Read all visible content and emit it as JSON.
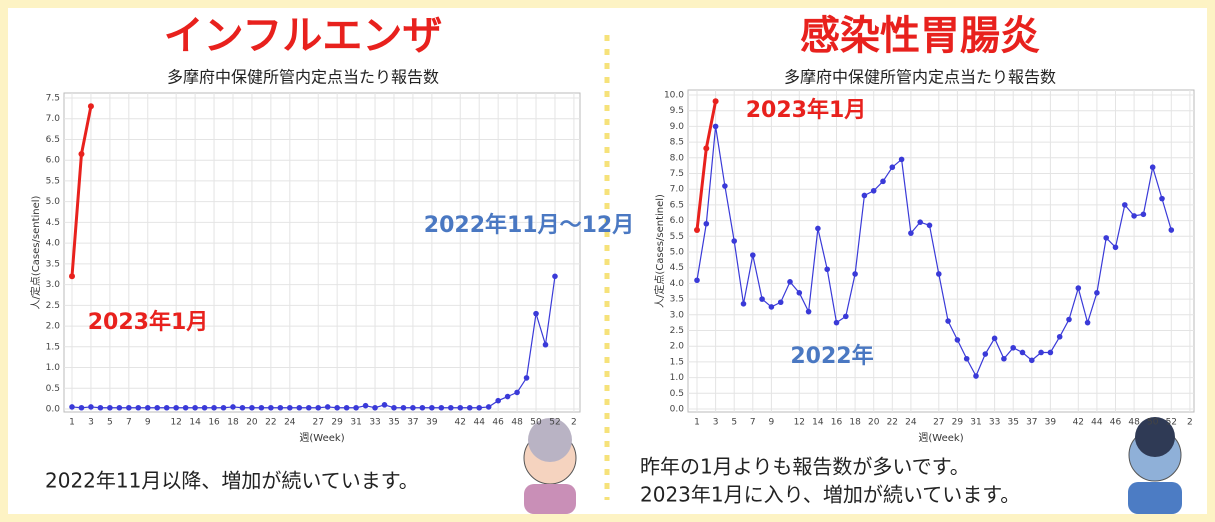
{
  "chart_data": [
    {
      "type": "line",
      "title": "インフルエンザ",
      "subtitle": "多摩府中保健所管内定点当たり報告数",
      "ylabel": "人/定点(Cases/sentinel)",
      "xlabel": "週(Week)",
      "categories": [
        "1",
        null,
        "3",
        null,
        "5",
        null,
        "7",
        null,
        "9",
        null,
        null,
        "12",
        null,
        "14",
        null,
        "16",
        null,
        "18",
        null,
        "20",
        null,
        "22",
        null,
        "24",
        null,
        null,
        "27",
        null,
        "29",
        null,
        "31",
        null,
        "33",
        null,
        "35",
        null,
        "37",
        null,
        "39",
        null,
        null,
        "42",
        null,
        "44",
        null,
        "46",
        null,
        "48",
        null,
        "50",
        null,
        "52",
        null,
        "2"
      ],
      "series": [
        {
          "color": "#3a3ad8",
          "values": [
            0.05,
            0.03,
            0.05,
            0.03,
            0.03,
            0.03,
            0.03,
            0.03,
            0.03,
            0.03,
            0.03,
            0.03,
            0.03,
            0.03,
            0.03,
            0.03,
            0.03,
            0.05,
            0.03,
            0.03,
            0.03,
            0.03,
            0.03,
            0.03,
            0.03,
            0.03,
            0.03,
            0.05,
            0.03,
            0.03,
            0.03,
            0.08,
            0.03,
            0.1,
            0.03,
            0.03,
            0.03,
            0.03,
            0.03,
            0.03,
            0.03,
            0.03,
            0.03,
            0.03,
            0.05,
            0.2,
            0.3,
            0.4,
            0.75,
            2.3,
            1.55,
            3.2,
            null,
            null
          ]
        },
        {
          "color": "#e8211d",
          "values": [
            3.2,
            6.15,
            7.3,
            null,
            null,
            null,
            null,
            null,
            null,
            null,
            null,
            null,
            null,
            null,
            null,
            null,
            null,
            null,
            null,
            null,
            null,
            null,
            null,
            null,
            null,
            null,
            null,
            null,
            null,
            null,
            null,
            null,
            null,
            null,
            null,
            null,
            null,
            null,
            null,
            null,
            null,
            null,
            null,
            null,
            null,
            null,
            null,
            null,
            null,
            null,
            null,
            null,
            null,
            null
          ]
        }
      ],
      "ylim": [
        0,
        7.5
      ],
      "yticks": [
        {
          "value": 0,
          "label": "0.0"
        },
        0.5,
        {
          "value": 1,
          "label": "1.0"
        },
        1.5,
        {
          "value": 2,
          "label": "2.0"
        },
        2.5,
        {
          "value": 3,
          "label": "3.0"
        },
        3.5,
        {
          "value": 4,
          "label": "4.0"
        },
        4.5,
        {
          "value": 5,
          "label": "5.0"
        },
        5.5,
        {
          "value": 6,
          "label": "6.0"
        },
        6.5,
        {
          "value": 7,
          "label": "7.0"
        },
        7.5
      ],
      "grid": true,
      "annotations": [
        {
          "text": "2022年11月〜12月",
          "color": "#4a78c2"
        },
        {
          "text": "2023年1月",
          "color": "#e8211d"
        }
      ],
      "caption": [
        "2022年11月以降、増加が続いています。"
      ]
    },
    {
      "type": "line",
      "title": "感染性胃腸炎",
      "subtitle": "多摩府中保健所管内定点当たり報告数",
      "ylabel": "人/定点(Cases/sentinel)",
      "xlabel": "週(Week)",
      "categories": [
        "1",
        null,
        "3",
        null,
        "5",
        null,
        "7",
        null,
        "9",
        null,
        null,
        "12",
        null,
        "14",
        null,
        "16",
        null,
        "18",
        null,
        "20",
        null,
        "22",
        null,
        "24",
        null,
        null,
        "27",
        null,
        "29",
        null,
        "31",
        null,
        "33",
        null,
        "35",
        null,
        "37",
        null,
        "39",
        null,
        null,
        "42",
        null,
        "44",
        null,
        "46",
        null,
        "48",
        null,
        "50",
        null,
        "52",
        null,
        "2"
      ],
      "series": [
        {
          "color": "#3a3ad8",
          "values": [
            4.1,
            5.9,
            9.0,
            7.1,
            5.35,
            3.35,
            4.9,
            3.5,
            3.25,
            3.4,
            4.05,
            3.7,
            3.1,
            5.75,
            4.45,
            2.75,
            2.95,
            4.3,
            6.8,
            6.95,
            7.25,
            7.7,
            7.95,
            5.6,
            5.95,
            5.85,
            4.3,
            2.8,
            2.2,
            1.6,
            1.05,
            1.75,
            2.25,
            1.6,
            1.95,
            1.8,
            1.55,
            1.8,
            1.8,
            2.3,
            2.85,
            3.85,
            2.75,
            3.7,
            5.45,
            5.15,
            6.5,
            6.15,
            6.2,
            7.7,
            6.7,
            5.7,
            null,
            null
          ]
        },
        {
          "color": "#e8211d",
          "values": [
            5.7,
            8.3,
            9.8,
            null,
            null,
            null,
            null,
            null,
            null,
            null,
            null,
            null,
            null,
            null,
            null,
            null,
            null,
            null,
            null,
            null,
            null,
            null,
            null,
            null,
            null,
            null,
            null,
            null,
            null,
            null,
            null,
            null,
            null,
            null,
            null,
            null,
            null,
            null,
            null,
            null,
            null,
            null,
            null,
            null,
            null,
            null,
            null,
            null,
            null,
            null,
            null,
            null,
            null,
            null
          ]
        }
      ],
      "ylim": [
        0,
        10
      ],
      "yticks": [
        {
          "value": 0,
          "label": "0.0"
        },
        0.5,
        {
          "value": 1,
          "label": "1.0"
        },
        1.5,
        {
          "value": 2,
          "label": "2.0"
        },
        2.5,
        {
          "value": 3,
          "label": "3.0"
        },
        3.5,
        {
          "value": 4,
          "label": "4.0"
        },
        4.5,
        {
          "value": 5,
          "label": "5.0"
        },
        5.5,
        {
          "value": 6,
          "label": "6.0"
        },
        6.5,
        {
          "value": 7,
          "label": "7.0"
        },
        7.5,
        {
          "value": 8,
          "label": "8.0"
        },
        8.5,
        {
          "value": 9,
          "label": "9.0"
        },
        9.5,
        {
          "value": 10,
          "label": "10.0"
        }
      ],
      "grid": true,
      "annotations": [
        {
          "text": "2023年1月",
          "color": "#e8211d"
        },
        {
          "text": "2022年",
          "color": "#4a78c2"
        }
      ],
      "caption": [
        "昨年の1月よりも報告数が多いです。",
        "2023年1月に入り、増加が続いています。"
      ]
    }
  ]
}
